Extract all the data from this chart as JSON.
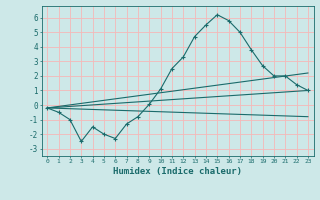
{
  "xlabel": "Humidex (Indice chaleur)",
  "background_color": "#cde8e8",
  "grid_color": "#f5b8b8",
  "line_color": "#1a6b6b",
  "xlim": [
    -0.5,
    23.5
  ],
  "ylim": [
    -3.5,
    6.8
  ],
  "yticks": [
    -3,
    -2,
    -1,
    0,
    1,
    2,
    3,
    4,
    5,
    6
  ],
  "xticks": [
    0,
    1,
    2,
    3,
    4,
    5,
    6,
    7,
    8,
    9,
    10,
    11,
    12,
    13,
    14,
    15,
    16,
    17,
    18,
    19,
    20,
    21,
    22,
    23
  ],
  "curve1_x": [
    0,
    1,
    2,
    3,
    4,
    5,
    6,
    7,
    8,
    9,
    10,
    11,
    12,
    13,
    14,
    15,
    16,
    17,
    18,
    19,
    20,
    21,
    22,
    23
  ],
  "curve1_y": [
    -0.2,
    -0.5,
    -1.0,
    -2.5,
    -1.5,
    -2.0,
    -2.3,
    -1.3,
    -0.8,
    0.05,
    1.1,
    2.5,
    3.3,
    4.7,
    5.5,
    6.2,
    5.8,
    5.0,
    3.8,
    2.7,
    2.0,
    2.0,
    1.4,
    1.0
  ],
  "line1_x": [
    0,
    23
  ],
  "line1_y": [
    -0.2,
    2.2
  ],
  "line2_x": [
    0,
    23
  ],
  "line2_y": [
    -0.2,
    1.0
  ],
  "line3_x": [
    0,
    23
  ],
  "line3_y": [
    -0.2,
    -0.8
  ]
}
